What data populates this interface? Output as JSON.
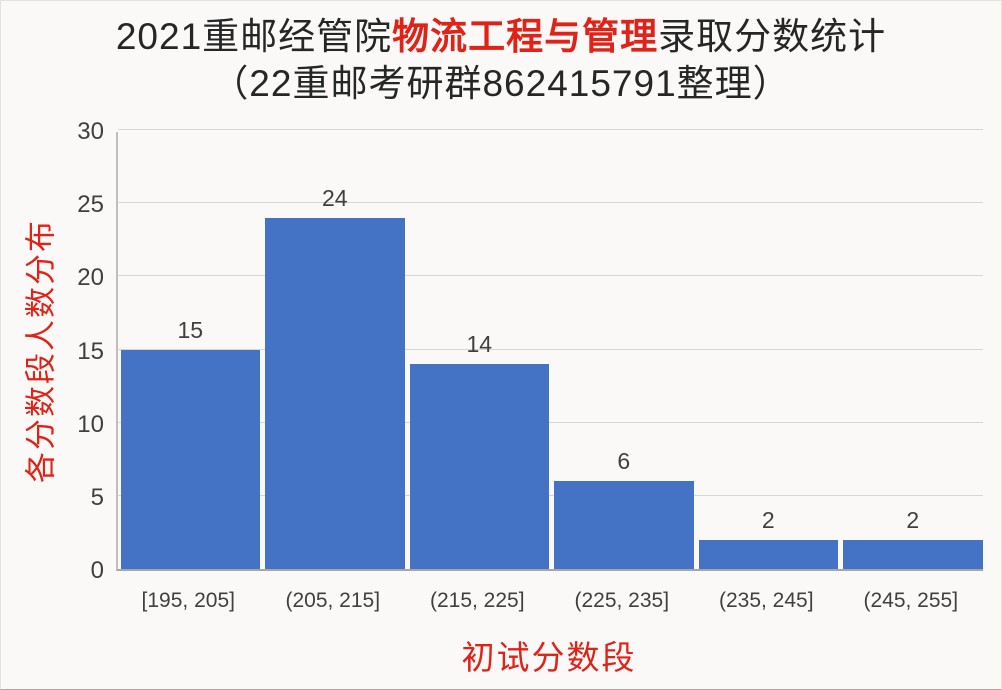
{
  "title": {
    "line1_prefix": "2021重邮经管院",
    "line1_highlight": "物流工程与管理",
    "line1_suffix": "录取分数统计",
    "line2": "（22重邮考研群862415791整理）"
  },
  "colors": {
    "accent_red": "#e02318",
    "bar_blue": "#4472c4",
    "gridline": "#d6d6d4",
    "axis_line": "#a6a6a6",
    "tick_text": "#404040",
    "title_text": "#262626",
    "background": "#faf9f7"
  },
  "chart_data": {
    "type": "bar",
    "title": "2021重邮经管院物流工程与管理录取分数统计（22重邮考研群862415791整理）",
    "categories": [
      "[195, 205]",
      "(205, 215]",
      "(215, 225]",
      "(225, 235]",
      "(235, 245]",
      "(245, 255]"
    ],
    "values": [
      15,
      24,
      14,
      6,
      2,
      2
    ],
    "data_labels": [
      "15",
      "24",
      "14",
      "6",
      "2",
      "2"
    ],
    "xlabel": "初试分数段",
    "ylabel": "各分数段人数分布",
    "ylim": [
      0,
      30
    ],
    "yticks": [
      0,
      5,
      10,
      15,
      20,
      25,
      30
    ],
    "grid": true,
    "legend": false,
    "bar_color": "#4472c4"
  }
}
